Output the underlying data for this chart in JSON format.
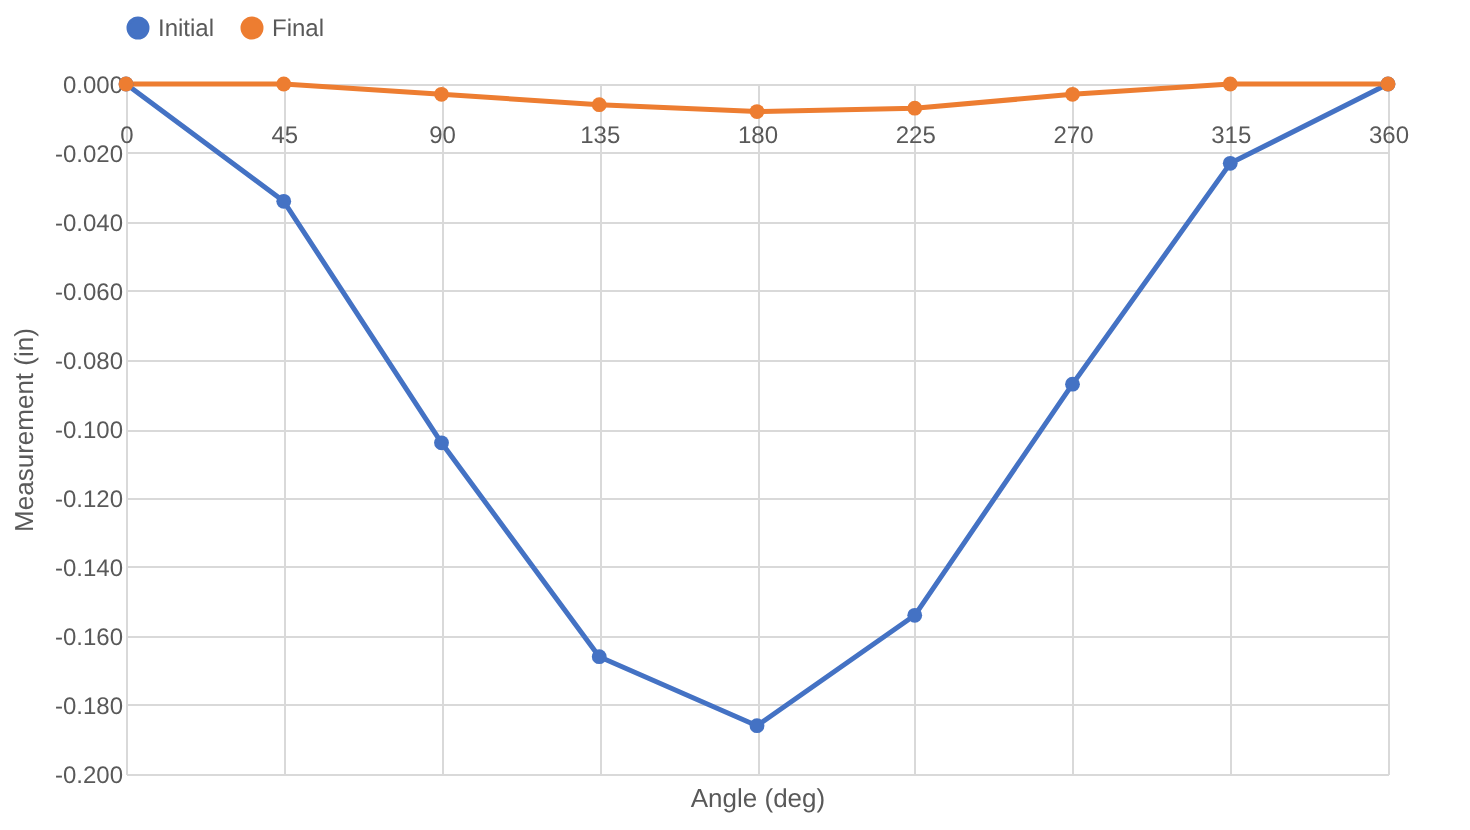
{
  "chart_data": {
    "type": "line",
    "xlabel": "Angle (deg)",
    "ylabel": "Measurement (in)",
    "x": [
      0,
      45,
      90,
      135,
      180,
      225,
      270,
      315,
      360
    ],
    "series": [
      {
        "name": "Initial",
        "color": "#4472c4",
        "values": [
          0,
          -0.034,
          -0.104,
          -0.166,
          -0.186,
          -0.154,
          -0.087,
          -0.023,
          0
        ]
      },
      {
        "name": "Final",
        "color": "#ed7d31",
        "values": [
          0,
          0,
          -0.003,
          -0.006,
          -0.008,
          -0.007,
          -0.003,
          0,
          0
        ]
      }
    ],
    "xlim": [
      0,
      360
    ],
    "xticks": [
      0,
      45,
      90,
      135,
      180,
      225,
      270,
      315,
      360
    ],
    "ylim": [
      -0.2,
      0
    ],
    "yticks": [
      {
        "value": -0.2,
        "label": "-0.200"
      },
      {
        "value": -0.18,
        "label": "-0.180"
      },
      {
        "value": -0.16,
        "label": "-0.160"
      },
      {
        "value": -0.14,
        "label": "-0.140"
      },
      {
        "value": -0.12,
        "label": "-0.120"
      },
      {
        "value": -0.1,
        "label": "-0.100"
      },
      {
        "value": -0.08,
        "label": "-0.080"
      },
      {
        "value": -0.06,
        "label": "-0.060"
      },
      {
        "value": -0.04,
        "label": "-0.040"
      },
      {
        "value": -0.02,
        "label": "-0.020"
      },
      {
        "value": 0,
        "label": "0.000"
      }
    ],
    "grid": true,
    "legend": "top",
    "marker": "circle",
    "line_style": "solid"
  }
}
